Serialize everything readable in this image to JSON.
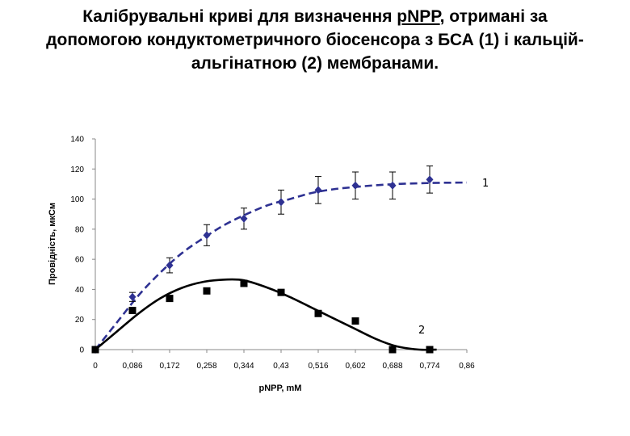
{
  "title": {
    "part1": "Калібрувальні криві для визначення ",
    "underlined": "pNPP",
    "part2": ", отримані за допомогою кондуктометричного біосенсора з БСА (1) і кальцій-альгінатною (2) мембранами."
  },
  "chart_data": {
    "type": "scatter",
    "xlabel": "pNPP, mM",
    "ylabel": "Провідність, мкСм",
    "categories": [
      "0",
      "0,086",
      "0,172",
      "0,258",
      "0,344",
      "0,43",
      "0,516",
      "0,602",
      "0,688",
      "0,774",
      "0,86"
    ],
    "x_ticks": [
      0,
      0.086,
      0.172,
      0.258,
      0.344,
      0.43,
      0.516,
      0.602,
      0.688,
      0.774,
      0.86
    ],
    "xlim": [
      0,
      0.86
    ],
    "ylim": [
      0,
      140
    ],
    "y_ticks": [
      0,
      20,
      40,
      60,
      80,
      100,
      120,
      140
    ],
    "grid": false,
    "series": [
      {
        "name": "1",
        "marker": "diamond",
        "color": "#2e3192",
        "line_style": "dashed",
        "x": [
          0,
          0.086,
          0.172,
          0.258,
          0.344,
          0.43,
          0.516,
          0.602,
          0.688,
          0.774
        ],
        "y": [
          0,
          35,
          56,
          76,
          87,
          98,
          106,
          109,
          109,
          113
        ],
        "error": [
          0,
          3,
          5,
          7,
          7,
          8,
          9,
          9,
          9,
          9
        ],
        "fit_x": [
          0,
          0.05,
          0.1,
          0.15,
          0.2,
          0.25,
          0.3,
          0.35,
          0.4,
          0.45,
          0.5,
          0.55,
          0.6,
          0.65,
          0.7,
          0.75,
          0.8,
          0.86
        ],
        "fit_y": [
          0,
          18,
          36,
          51,
          64,
          74,
          83,
          90,
          96,
          100,
          104,
          106.5,
          108,
          109.2,
          110,
          110.5,
          110.8,
          111
        ]
      },
      {
        "name": "2",
        "marker": "square",
        "color": "#000000",
        "line_style": "solid",
        "x": [
          0,
          0.086,
          0.172,
          0.258,
          0.344,
          0.43,
          0.516,
          0.602,
          0.688,
          0.774
        ],
        "y": [
          0,
          26,
          34,
          39,
          44,
          38,
          24,
          19,
          0,
          0
        ],
        "fit_x": [
          0,
          0.05,
          0.1,
          0.15,
          0.2,
          0.25,
          0.3,
          0.344,
          0.4,
          0.45,
          0.5,
          0.55,
          0.6,
          0.65,
          0.7,
          0.75,
          0.79
        ],
        "fit_y": [
          0,
          12,
          24,
          34,
          41,
          45,
          46.5,
          46,
          41,
          35,
          28,
          21,
          14,
          7,
          2,
          0,
          0
        ]
      }
    ]
  }
}
